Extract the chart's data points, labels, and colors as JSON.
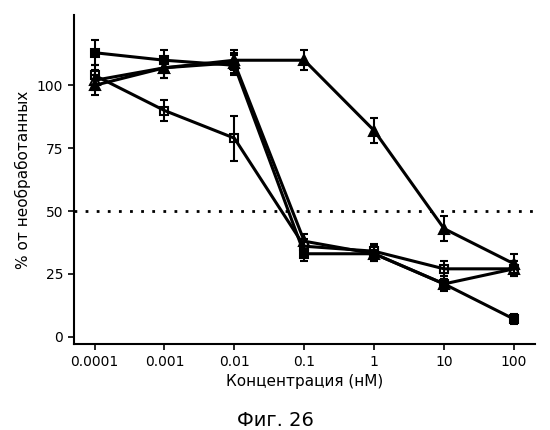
{
  "x_values": [
    0.0001,
    0.001,
    0.01,
    0.1,
    1,
    10,
    100
  ],
  "series": [
    {
      "name": "filled_square",
      "marker": "s",
      "fillstyle": "full",
      "y": [
        113,
        110,
        108,
        33,
        33,
        21,
        7
      ],
      "yerr": [
        5,
        4,
        4,
        3,
        3,
        2,
        2
      ],
      "linewidth": 2.2,
      "markersize": 6
    },
    {
      "name": "open_square",
      "marker": "s",
      "fillstyle": "none",
      "y": [
        104,
        90,
        79,
        36,
        34,
        27,
        27
      ],
      "yerr": [
        4,
        4,
        9,
        3,
        3,
        3,
        3
      ],
      "linewidth": 2.2,
      "markersize": 6
    },
    {
      "name": "filled_triangle",
      "marker": "^",
      "fillstyle": "full",
      "y": [
        100,
        107,
        110,
        110,
        82,
        43,
        29
      ],
      "yerr": [
        4,
        4,
        4,
        4,
        5,
        5,
        4
      ],
      "linewidth": 2.2,
      "markersize": 7
    },
    {
      "name": "open_triangle",
      "marker": "^",
      "fillstyle": "none",
      "y": [
        102,
        107,
        109,
        38,
        33,
        21,
        27
      ],
      "yerr": [
        4,
        4,
        4,
        3,
        3,
        3,
        3
      ],
      "linewidth": 2.2,
      "markersize": 7
    }
  ],
  "xlabel": "Концентрация (нМ)",
  "ylabel": "% от необработанных",
  "figure_title": "Фиг. 26",
  "dashed_line_y": 50,
  "ylim": [
    -3,
    128
  ],
  "yticks": [
    0,
    25,
    50,
    75,
    100
  ],
  "background_color": "#ffffff",
  "title_fontsize": 14,
  "label_fontsize": 11,
  "tick_fontsize": 10
}
